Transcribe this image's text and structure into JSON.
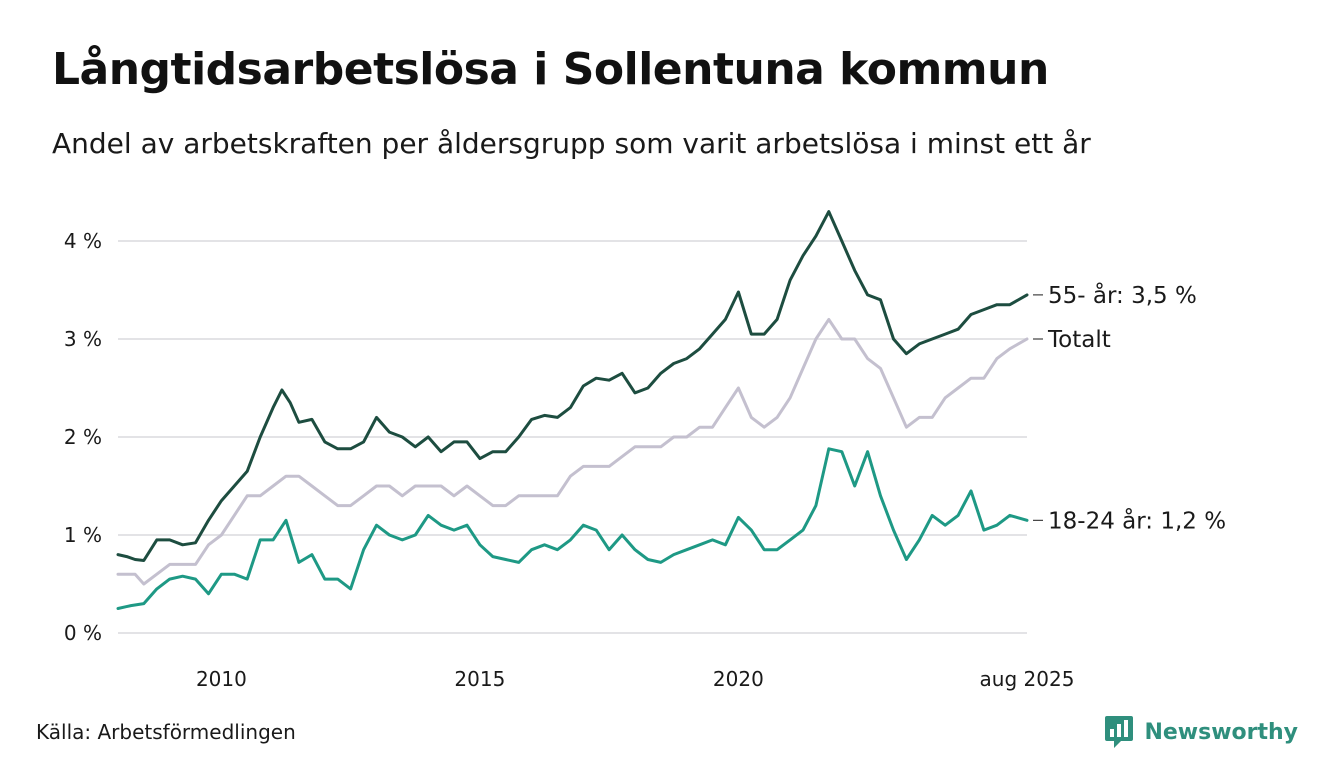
{
  "header": {
    "title": "Långtidsarbetslösa i Sollentuna kommun",
    "subtitle": "Andel av arbetskraften per åldersgrupp som varit arbetslösa i minst ett år"
  },
  "footer": {
    "source": "Källa: Arbetsförmedlingen",
    "brand": "Newsworthy"
  },
  "chart_data": {
    "type": "line",
    "title": "Långtidsarbetslösa i Sollentuna kommun",
    "subtitle": "Andel av arbetskraften per åldersgrupp som varit arbetslösa i minst ett år",
    "xlabel": "",
    "ylabel": "",
    "x_start": 2008.0,
    "x_end": 2025.583,
    "x_ticks": [
      {
        "value": 2010,
        "label": "2010"
      },
      {
        "value": 2015,
        "label": "2015"
      },
      {
        "value": 2020,
        "label": "2020"
      },
      {
        "value": 2025.583,
        "label": "aug 2025"
      }
    ],
    "y_ticks": [
      {
        "value": 0,
        "label": "0 %"
      },
      {
        "value": 1,
        "label": "1 %"
      },
      {
        "value": 2,
        "label": "2 %"
      },
      {
        "value": 3,
        "label": "3 %"
      },
      {
        "value": 4,
        "label": "4 %"
      }
    ],
    "ylim": [
      0,
      4.4
    ],
    "grid": true,
    "legend": "direct labels at right end of lines",
    "series": [
      {
        "name": "Totalt",
        "label": "Totalt",
        "color": "#c4c0cf",
        "points": [
          [
            2008.0,
            0.6
          ],
          [
            2008.33,
            0.6
          ],
          [
            2008.5,
            0.5
          ],
          [
            2008.75,
            0.6
          ],
          [
            2009.0,
            0.7
          ],
          [
            2009.25,
            0.7
          ],
          [
            2009.5,
            0.7
          ],
          [
            2009.75,
            0.9
          ],
          [
            2010.0,
            1.0
          ],
          [
            2010.25,
            1.2
          ],
          [
            2010.5,
            1.4
          ],
          [
            2010.75,
            1.4
          ],
          [
            2011.0,
            1.5
          ],
          [
            2011.25,
            1.6
          ],
          [
            2011.5,
            1.6
          ],
          [
            2011.75,
            1.5
          ],
          [
            2012.0,
            1.4
          ],
          [
            2012.25,
            1.3
          ],
          [
            2012.5,
            1.3
          ],
          [
            2012.75,
            1.4
          ],
          [
            2013.0,
            1.5
          ],
          [
            2013.25,
            1.5
          ],
          [
            2013.5,
            1.4
          ],
          [
            2013.75,
            1.5
          ],
          [
            2014.0,
            1.5
          ],
          [
            2014.25,
            1.5
          ],
          [
            2014.5,
            1.4
          ],
          [
            2014.75,
            1.5
          ],
          [
            2015.0,
            1.4
          ],
          [
            2015.25,
            1.3
          ],
          [
            2015.5,
            1.3
          ],
          [
            2015.75,
            1.4
          ],
          [
            2016.0,
            1.4
          ],
          [
            2016.25,
            1.4
          ],
          [
            2016.5,
            1.4
          ],
          [
            2016.75,
            1.6
          ],
          [
            2017.0,
            1.7
          ],
          [
            2017.25,
            1.7
          ],
          [
            2017.5,
            1.7
          ],
          [
            2017.75,
            1.8
          ],
          [
            2018.0,
            1.9
          ],
          [
            2018.25,
            1.9
          ],
          [
            2018.5,
            1.9
          ],
          [
            2018.75,
            2.0
          ],
          [
            2019.0,
            2.0
          ],
          [
            2019.25,
            2.1
          ],
          [
            2019.5,
            2.1
          ],
          [
            2019.75,
            2.3
          ],
          [
            2020.0,
            2.5
          ],
          [
            2020.25,
            2.2
          ],
          [
            2020.5,
            2.1
          ],
          [
            2020.75,
            2.2
          ],
          [
            2021.0,
            2.4
          ],
          [
            2021.25,
            2.7
          ],
          [
            2021.5,
            3.0
          ],
          [
            2021.75,
            3.2
          ],
          [
            2022.0,
            3.0
          ],
          [
            2022.25,
            3.0
          ],
          [
            2022.5,
            2.8
          ],
          [
            2022.75,
            2.7
          ],
          [
            2023.0,
            2.4
          ],
          [
            2023.25,
            2.1
          ],
          [
            2023.5,
            2.2
          ],
          [
            2023.75,
            2.2
          ],
          [
            2024.0,
            2.4
          ],
          [
            2024.25,
            2.5
          ],
          [
            2024.5,
            2.6
          ],
          [
            2024.75,
            2.6
          ],
          [
            2025.0,
            2.8
          ],
          [
            2025.25,
            2.9
          ],
          [
            2025.583,
            3.0
          ]
        ]
      },
      {
        "name": "55- år",
        "label": "55- år: 3,5 %",
        "color": "#1d4d40",
        "points": [
          [
            2008.0,
            0.8
          ],
          [
            2008.17,
            0.78
          ],
          [
            2008.33,
            0.75
          ],
          [
            2008.5,
            0.74
          ],
          [
            2008.75,
            0.95
          ],
          [
            2009.0,
            0.95
          ],
          [
            2009.25,
            0.9
          ],
          [
            2009.5,
            0.92
          ],
          [
            2009.75,
            1.15
          ],
          [
            2010.0,
            1.35
          ],
          [
            2010.25,
            1.5
          ],
          [
            2010.5,
            1.65
          ],
          [
            2010.75,
            2.0
          ],
          [
            2011.0,
            2.3
          ],
          [
            2011.17,
            2.48
          ],
          [
            2011.33,
            2.35
          ],
          [
            2011.5,
            2.15
          ],
          [
            2011.75,
            2.18
          ],
          [
            2012.0,
            1.95
          ],
          [
            2012.25,
            1.88
          ],
          [
            2012.5,
            1.88
          ],
          [
            2012.75,
            1.95
          ],
          [
            2013.0,
            2.2
          ],
          [
            2013.25,
            2.05
          ],
          [
            2013.5,
            2.0
          ],
          [
            2013.75,
            1.9
          ],
          [
            2014.0,
            2.0
          ],
          [
            2014.25,
            1.85
          ],
          [
            2014.5,
            1.95
          ],
          [
            2014.75,
            1.95
          ],
          [
            2015.0,
            1.78
          ],
          [
            2015.25,
            1.85
          ],
          [
            2015.5,
            1.85
          ],
          [
            2015.75,
            2.0
          ],
          [
            2016.0,
            2.18
          ],
          [
            2016.25,
            2.22
          ],
          [
            2016.5,
            2.2
          ],
          [
            2016.75,
            2.3
          ],
          [
            2017.0,
            2.52
          ],
          [
            2017.25,
            2.6
          ],
          [
            2017.5,
            2.58
          ],
          [
            2017.75,
            2.65
          ],
          [
            2018.0,
            2.45
          ],
          [
            2018.25,
            2.5
          ],
          [
            2018.5,
            2.65
          ],
          [
            2018.75,
            2.75
          ],
          [
            2019.0,
            2.8
          ],
          [
            2019.25,
            2.9
          ],
          [
            2019.5,
            3.05
          ],
          [
            2019.75,
            3.2
          ],
          [
            2020.0,
            3.48
          ],
          [
            2020.25,
            3.05
          ],
          [
            2020.5,
            3.05
          ],
          [
            2020.75,
            3.2
          ],
          [
            2021.0,
            3.6
          ],
          [
            2021.25,
            3.85
          ],
          [
            2021.5,
            4.05
          ],
          [
            2021.75,
            4.3
          ],
          [
            2022.0,
            4.0
          ],
          [
            2022.25,
            3.7
          ],
          [
            2022.5,
            3.45
          ],
          [
            2022.75,
            3.4
          ],
          [
            2023.0,
            3.0
          ],
          [
            2023.25,
            2.85
          ],
          [
            2023.5,
            2.95
          ],
          [
            2023.75,
            3.0
          ],
          [
            2024.0,
            3.05
          ],
          [
            2024.25,
            3.1
          ],
          [
            2024.5,
            3.25
          ],
          [
            2024.75,
            3.3
          ],
          [
            2025.0,
            3.35
          ],
          [
            2025.25,
            3.35
          ],
          [
            2025.583,
            3.45
          ]
        ]
      },
      {
        "name": "18-24 år",
        "label": "18-24 år: 1,2 %",
        "color": "#1e9985",
        "points": [
          [
            2008.0,
            0.25
          ],
          [
            2008.25,
            0.28
          ],
          [
            2008.5,
            0.3
          ],
          [
            2008.75,
            0.45
          ],
          [
            2009.0,
            0.55
          ],
          [
            2009.25,
            0.58
          ],
          [
            2009.5,
            0.55
          ],
          [
            2009.75,
            0.4
          ],
          [
            2010.0,
            0.6
          ],
          [
            2010.25,
            0.6
          ],
          [
            2010.5,
            0.55
          ],
          [
            2010.75,
            0.95
          ],
          [
            2011.0,
            0.95
          ],
          [
            2011.25,
            1.15
          ],
          [
            2011.5,
            0.72
          ],
          [
            2011.75,
            0.8
          ],
          [
            2012.0,
            0.55
          ],
          [
            2012.25,
            0.55
          ],
          [
            2012.5,
            0.45
          ],
          [
            2012.75,
            0.85
          ],
          [
            2013.0,
            1.1
          ],
          [
            2013.25,
            1.0
          ],
          [
            2013.5,
            0.95
          ],
          [
            2013.75,
            1.0
          ],
          [
            2014.0,
            1.2
          ],
          [
            2014.25,
            1.1
          ],
          [
            2014.5,
            1.05
          ],
          [
            2014.75,
            1.1
          ],
          [
            2015.0,
            0.9
          ],
          [
            2015.25,
            0.78
          ],
          [
            2015.5,
            0.75
          ],
          [
            2015.75,
            0.72
          ],
          [
            2016.0,
            0.85
          ],
          [
            2016.25,
            0.9
          ],
          [
            2016.5,
            0.85
          ],
          [
            2016.75,
            0.95
          ],
          [
            2017.0,
            1.1
          ],
          [
            2017.25,
            1.05
          ],
          [
            2017.5,
            0.85
          ],
          [
            2017.75,
            1.0
          ],
          [
            2018.0,
            0.85
          ],
          [
            2018.25,
            0.75
          ],
          [
            2018.5,
            0.72
          ],
          [
            2018.75,
            0.8
          ],
          [
            2019.0,
            0.85
          ],
          [
            2019.25,
            0.9
          ],
          [
            2019.5,
            0.95
          ],
          [
            2019.75,
            0.9
          ],
          [
            2020.0,
            1.18
          ],
          [
            2020.25,
            1.05
          ],
          [
            2020.5,
            0.85
          ],
          [
            2020.75,
            0.85
          ],
          [
            2021.0,
            0.95
          ],
          [
            2021.25,
            1.05
          ],
          [
            2021.5,
            1.3
          ],
          [
            2021.75,
            1.88
          ],
          [
            2022.0,
            1.85
          ],
          [
            2022.25,
            1.5
          ],
          [
            2022.5,
            1.85
          ],
          [
            2022.75,
            1.4
          ],
          [
            2023.0,
            1.05
          ],
          [
            2023.25,
            0.75
          ],
          [
            2023.5,
            0.95
          ],
          [
            2023.75,
            1.2
          ],
          [
            2024.0,
            1.1
          ],
          [
            2024.25,
            1.2
          ],
          [
            2024.5,
            1.45
          ],
          [
            2024.75,
            1.05
          ],
          [
            2025.0,
            1.1
          ],
          [
            2025.25,
            1.2
          ],
          [
            2025.583,
            1.15
          ]
        ]
      }
    ]
  }
}
